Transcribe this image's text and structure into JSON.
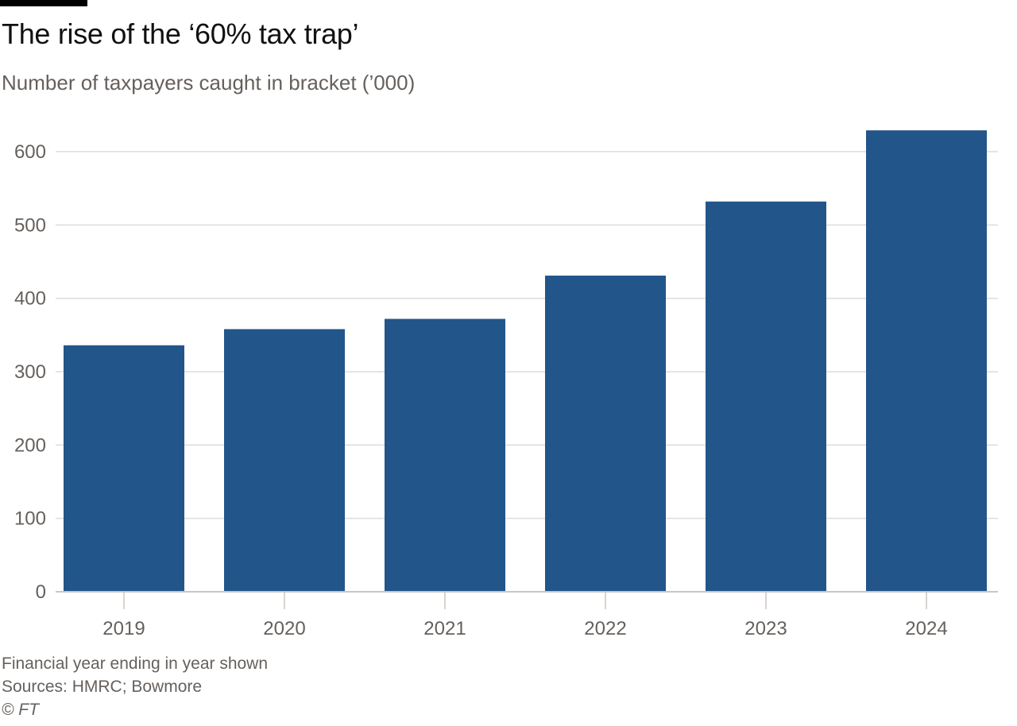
{
  "header": {
    "title": "The rise of the ‘60% tax trap’",
    "subtitle": "Number of taxpayers caught in bracket (’000)"
  },
  "footer": {
    "note": "Financial year ending in year shown",
    "sources": "Sources: HMRC; Bowmore",
    "copyright": "© FT"
  },
  "colors": {
    "bar": "#22558a",
    "grid": "#e0dcd8",
    "axis": "#ccc6c2",
    "text": "#66605c"
  },
  "chart_data": {
    "type": "bar",
    "title": "The rise of the ‘60% tax trap’",
    "subtitle": "Number of taxpayers caught in bracket (’000)",
    "xlabel": "",
    "ylabel": "",
    "categories": [
      "2019",
      "2020",
      "2021",
      "2022",
      "2023",
      "2024"
    ],
    "values": [
      336,
      358,
      372,
      431,
      532,
      629
    ],
    "ylim": [
      0,
      650
    ],
    "yticks": [
      0,
      100,
      200,
      300,
      400,
      500,
      600
    ],
    "ytick_labels": [
      "0",
      "100",
      "200",
      "300",
      "400",
      "500",
      "600"
    ],
    "grid": true,
    "legend": "none"
  }
}
